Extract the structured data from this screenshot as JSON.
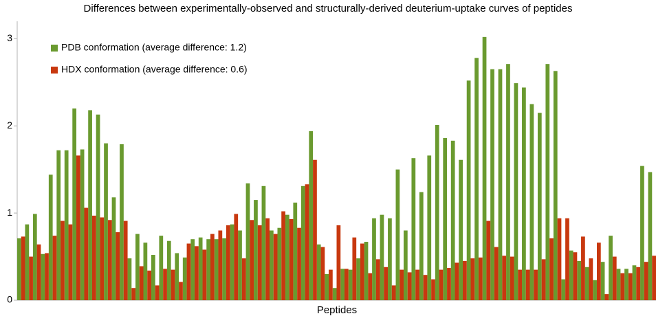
{
  "chart_data": {
    "type": "bar",
    "title": "Differences between experimentally-observed and structurally-derived deuterium-uptake curves of peptides",
    "x_label": "Peptides",
    "categories": [
      null,
      null,
      null,
      null,
      null,
      null,
      null,
      null,
      null,
      null,
      null,
      null,
      null,
      null,
      null,
      null,
      null,
      null,
      null,
      null,
      null,
      null,
      null,
      null,
      null,
      null,
      null,
      null,
      null,
      null,
      null,
      null,
      null,
      null,
      null,
      null,
      null,
      null,
      null,
      null,
      null,
      null,
      null,
      null,
      null,
      null,
      null,
      null,
      null,
      null,
      null,
      null,
      null,
      null,
      null,
      null,
      null,
      null,
      null,
      null,
      null,
      null,
      null,
      null,
      null,
      null,
      null,
      null,
      null,
      null,
      null,
      null,
      null,
      null,
      null,
      null,
      null,
      null,
      null,
      null,
      null
    ],
    "series": [
      {
        "name": "PDB conformation (average difference: 1.2)",
        "color": "#6a9a2f",
        "values": [
          0.71,
          0.87,
          0.99,
          0.53,
          1.44,
          1.72,
          1.72,
          2.2,
          1.73,
          2.18,
          2.13,
          1.8,
          1.18,
          1.79,
          0.48,
          0.76,
          0.66,
          0.52,
          0.74,
          0.68,
          0.54,
          0.49,
          0.7,
          0.72,
          0.7,
          0.7,
          0.71,
          0.87,
          0.8,
          1.34,
          1.15,
          1.31,
          0.8,
          0.83,
          0.98,
          1.12,
          1.31,
          1.94,
          0.64,
          0.3,
          0.14,
          0.36,
          0.35,
          0.48,
          0.67,
          0.94,
          0.98,
          0.94,
          1.5,
          0.8,
          1.63,
          1.24,
          1.66,
          2.01,
          1.86,
          1.83,
          1.61,
          2.52,
          2.78,
          3.02,
          2.65,
          2.65,
          2.71,
          2.49,
          2.44,
          2.25,
          2.15,
          2.71,
          2.63,
          0.24,
          0.57,
          0.45,
          0.38,
          0.23,
          0.44,
          0.74,
          0.36,
          0.36,
          0.4,
          1.54,
          1.47
        ]
      },
      {
        "name": "HDX conformation (average difference: 0.6)",
        "color": "#c8380f",
        "values": [
          0.73,
          0.5,
          0.64,
          0.54,
          0.74,
          0.91,
          0.87,
          1.66,
          1.06,
          0.97,
          0.95,
          0.92,
          0.78,
          0.91,
          0.14,
          0.39,
          0.34,
          0.17,
          0.36,
          0.35,
          0.21,
          0.65,
          0.62,
          0.58,
          0.76,
          0.8,
          0.86,
          0.99,
          0.48,
          0.92,
          0.86,
          0.94,
          0.76,
          1.02,
          0.93,
          0.83,
          1.33,
          1.61,
          0.61,
          0.35,
          0.86,
          0.36,
          0.72,
          0.65,
          0.31,
          0.47,
          0.38,
          0.17,
          0.35,
          0.32,
          0.35,
          0.29,
          0.24,
          0.35,
          0.37,
          0.43,
          0.45,
          0.48,
          0.49,
          0.91,
          0.61,
          0.51,
          0.5,
          0.35,
          0.35,
          0.35,
          0.47,
          0.71,
          0.94,
          0.94,
          0.55,
          0.73,
          0.48,
          0.66,
          0.07,
          0.5,
          0.31,
          0.31,
          0.38,
          0.44,
          0.51
        ]
      }
    ],
    "ylim": [
      0,
      3.2
    ],
    "yticks": [
      0,
      1,
      2,
      3
    ],
    "grid": false,
    "legend": "top-left"
  }
}
